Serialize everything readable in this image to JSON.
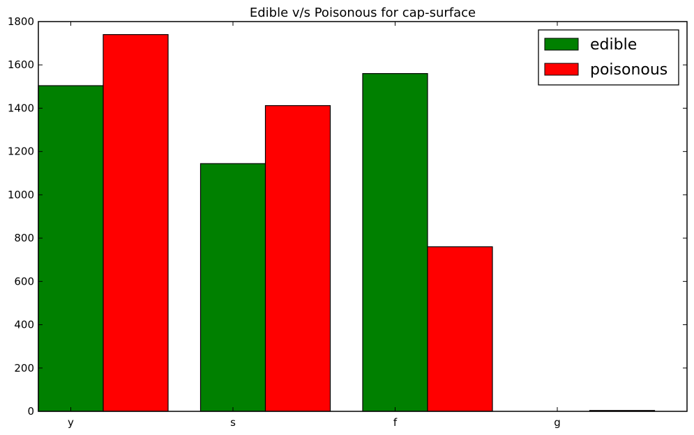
{
  "chart_data": {
    "type": "bar",
    "title": "Edible v/s Poisonous for cap-surface",
    "xlabel": "",
    "ylabel": "",
    "categories": [
      "y",
      "s",
      "f",
      "g"
    ],
    "series": [
      {
        "name": "edible",
        "values": [
          1504,
          1144,
          1560,
          0
        ],
        "color": "#008000"
      },
      {
        "name": "poisonous",
        "values": [
          1740,
          1412,
          760,
          4
        ],
        "color": "#ff0000"
      }
    ],
    "ylim": [
      0,
      1800
    ],
    "yticks": [
      0,
      200,
      400,
      600,
      800,
      1000,
      1200,
      1400,
      1600,
      1800
    ],
    "grid": false,
    "legend_position": "top-right"
  }
}
